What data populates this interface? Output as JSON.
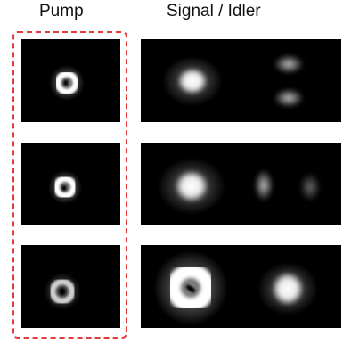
{
  "titles": {
    "pump": "Pump",
    "signal_idler": "Signal / Idler"
  },
  "colors": {
    "panel_background": "#000000",
    "dashed_box": "#e23b3b",
    "beam": "#ffffff"
  }
}
